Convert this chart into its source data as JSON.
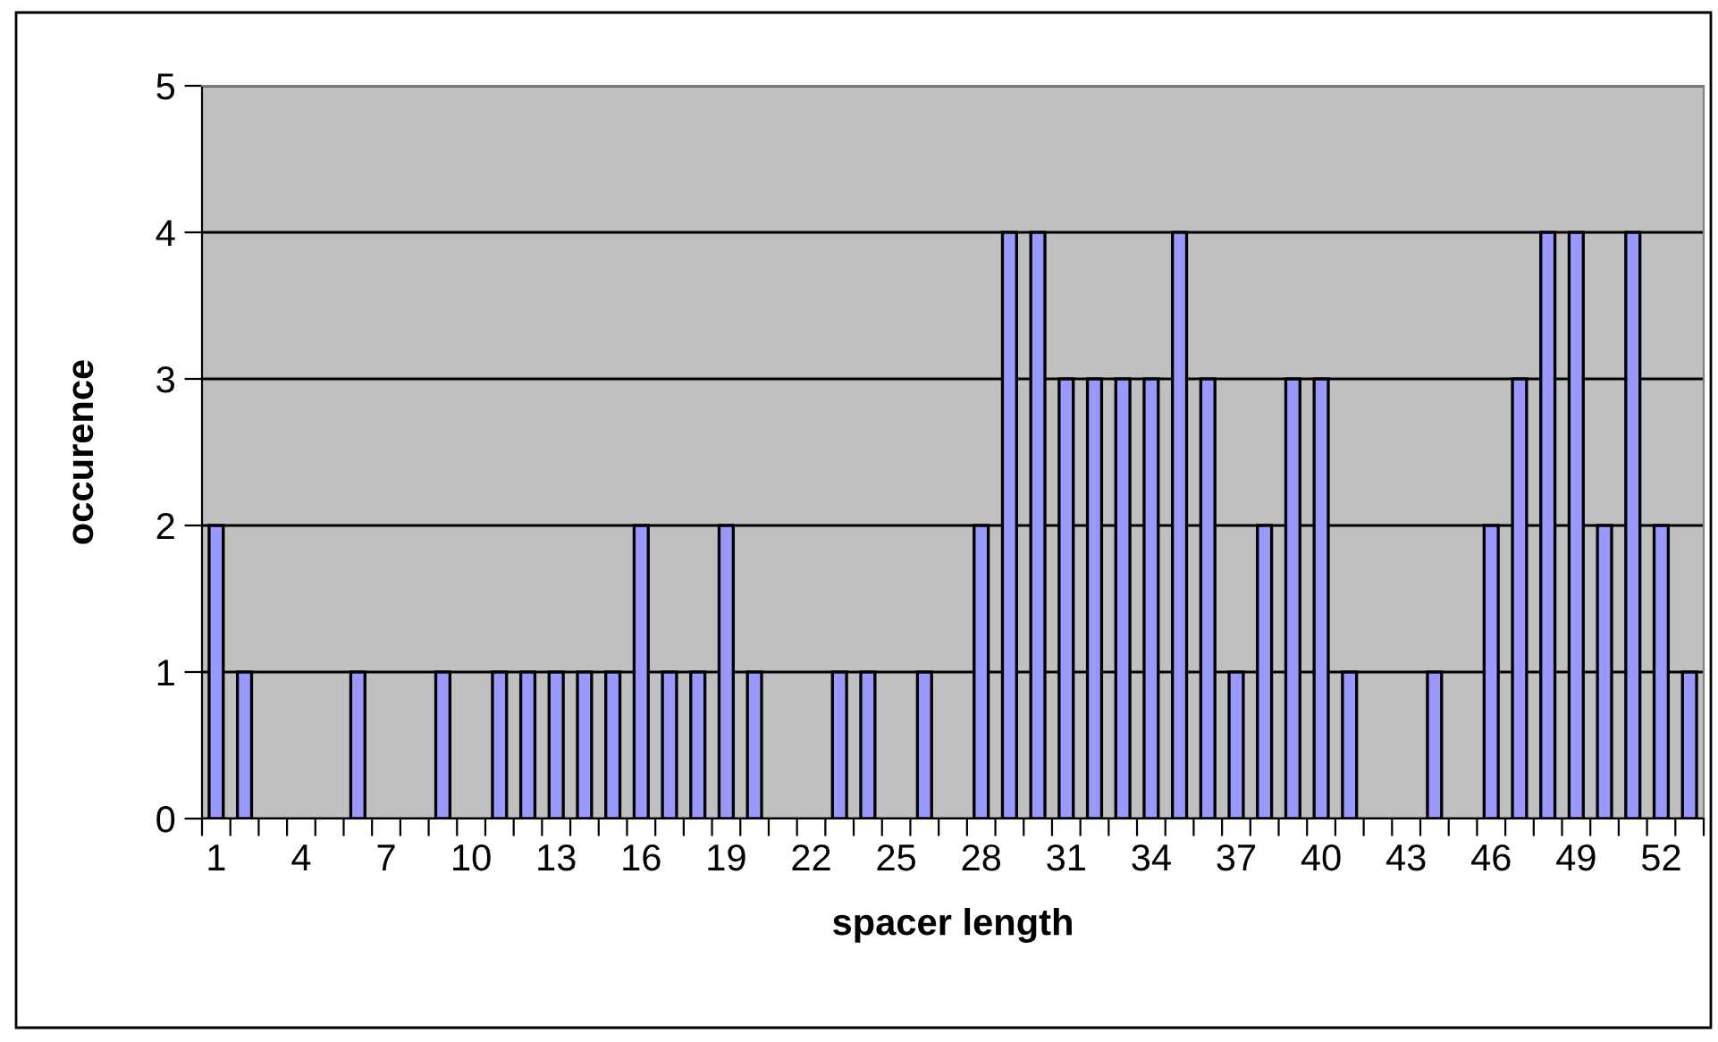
{
  "chart_data": {
    "type": "bar",
    "xlabel": "spacer length",
    "ylabel": "occurence",
    "categories": [
      "1",
      null,
      null,
      "4",
      null,
      null,
      "7",
      null,
      null,
      "10",
      null,
      null,
      "13",
      null,
      null,
      "16",
      null,
      null,
      "19",
      null,
      null,
      "22",
      null,
      null,
      "25",
      null,
      null,
      "28",
      null,
      null,
      "31",
      null,
      null,
      "34",
      null,
      null,
      "37",
      null,
      null,
      "40",
      null,
      null,
      "43",
      null,
      null,
      "46",
      null,
      null,
      "49",
      null,
      null,
      "52",
      null
    ],
    "values": [
      2,
      1,
      0,
      0,
      0,
      1,
      0,
      0,
      1,
      0,
      1,
      1,
      1,
      1,
      1,
      2,
      1,
      1,
      2,
      1,
      0,
      0,
      1,
      1,
      0,
      1,
      0,
      2,
      4,
      4,
      3,
      3,
      3,
      3,
      4,
      3,
      1,
      2,
      3,
      3,
      1,
      0,
      0,
      1,
      0,
      2,
      3,
      4,
      4,
      2,
      4,
      2,
      1
    ],
    "color": "#9999ff",
    "ylim": [
      0,
      5
    ],
    "yticks": [
      0,
      1,
      2,
      3,
      4,
      5
    ],
    "grid": "y"
  }
}
